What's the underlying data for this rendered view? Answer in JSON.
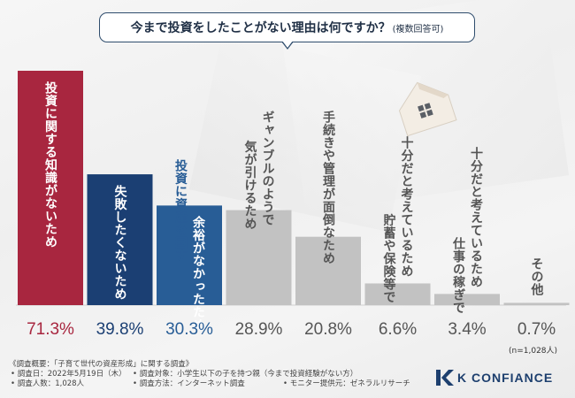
{
  "header": {
    "question": "今まで投資をしたことがない理由は何ですか？",
    "question_note": "(複数回答可)"
  },
  "chart_data": {
    "type": "bar",
    "categories": [
      "投資に関する知識がないため",
      "失敗したくないため",
      "余裕がなかったため\n投資に資産を回す",
      "ギャンブルのようで\n気が引けるため",
      "手続きや管理が面倒なため",
      "十分だと考えているため\n貯蓄や保険等で",
      "十分だと考えているため\n仕事の稼ぎで",
      "その他"
    ],
    "values": [
      71.3,
      39.8,
      30.3,
      28.9,
      20.8,
      6.6,
      3.4,
      0.7
    ],
    "value_labels": [
      "71.3%",
      "39.8%",
      "30.3%",
      "28.9%",
      "20.8%",
      "6.6%",
      "3.4%",
      "0.7%"
    ],
    "ylim": [
      0,
      71.3
    ],
    "colors": {
      "top1": "#a8263f",
      "top2": "#1b3f73",
      "top3": "#285d96",
      "rest": "#c2c2c2"
    },
    "label_colors": {
      "top1": "#a8263f",
      "top2": "#1b3f73",
      "top3": "#285d96",
      "rest": "#555555"
    }
  },
  "sample_note": "(n=1,028人)",
  "footer": {
    "title": "《調査概要：「子育て世代の資産形成」に関する調査》",
    "date": "• 調査日：2022年5月19日（木）",
    "target": "• 調査対象：小学生以下の子を持つ親（今まで投資経験がない方）",
    "count": "• 調査人数：1,028人",
    "method": "• 調査方法：インターネット調査",
    "provider": "• モニター提供元：ゼネラルリサーチ"
  },
  "brand": {
    "name": "K CONFIANCE",
    "icon": "k-logo-icon"
  }
}
